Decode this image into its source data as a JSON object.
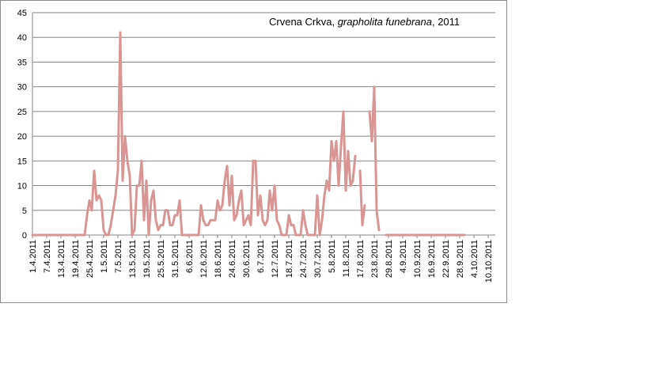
{
  "chart_data": {
    "type": "line",
    "title_parts": [
      {
        "text": "Crvena Crkva, ",
        "italic": false
      },
      {
        "text": "grapholita funebrana",
        "italic": true
      },
      {
        "text": ", 2011",
        "italic": false
      }
    ],
    "title": "Crvena Crkva, grapholita funebrana, 2011",
    "xlabel": "",
    "ylabel": "",
    "ylim": [
      0,
      45
    ],
    "yticks": [
      0,
      5,
      10,
      15,
      20,
      25,
      30,
      35,
      40,
      45
    ],
    "grid": true,
    "legend": "none",
    "line_color": "#d99594",
    "x_start": "1.4.2011",
    "x_end": "13.10.2011",
    "xtick_labels": [
      "1.4.2011",
      "7.4.2011",
      "13.4.2011",
      "19.4.2011",
      "25.4.2011",
      "1.5.2011",
      "7.5.2011",
      "13.5.2011",
      "19.5.2011",
      "25.5.2011",
      "31.5.2011",
      "6.6.2011",
      "12.6.2011",
      "18.6.2011",
      "24.6.2011",
      "30.6.2011",
      "6.7.2011",
      "12.7.2011",
      "18.7.2011",
      "24.7.2011",
      "30.7.2011",
      "5.8.2011",
      "11.8.2011",
      "17.8.2011",
      "23.8.2011",
      "29.8.2011",
      "4.9.2011",
      "10.9.2011",
      "16.9.2011",
      "22.9.2011",
      "28.9.2011",
      "4.10.2011",
      "10.10.2011"
    ],
    "series": [
      {
        "points": [
          [
            "1.4.2011",
            0
          ],
          [
            "18.4.2011",
            0
          ],
          [
            "23.4.2011",
            0
          ],
          [
            "24.4.2011",
            4
          ],
          [
            "25.4.2011",
            7
          ],
          [
            "26.4.2011",
            5
          ],
          [
            "27.4.2011",
            13
          ],
          [
            "28.4.2011",
            7
          ],
          [
            "29.4.2011",
            8
          ],
          [
            "30.4.2011",
            7
          ],
          [
            "1.5.2011",
            1
          ],
          [
            "2.5.2011",
            0
          ],
          [
            "3.5.2011",
            0
          ],
          [
            "4.5.2011",
            2
          ],
          [
            "5.5.2011",
            5
          ],
          [
            "6.5.2011",
            8
          ],
          [
            "7.5.2011",
            13
          ],
          [
            "8.5.2011",
            41
          ],
          [
            "9.5.2011",
            11
          ],
          [
            "10.5.2011",
            20
          ],
          [
            "11.5.2011",
            15
          ],
          [
            "12.5.2011",
            12
          ],
          [
            "13.5.2011",
            0
          ],
          [
            "14.5.2011",
            1
          ],
          [
            "15.5.2011",
            10
          ],
          [
            "16.5.2011",
            10
          ],
          [
            "17.5.2011",
            15
          ],
          [
            "18.5.2011",
            3
          ],
          [
            "19.5.2011",
            11
          ],
          [
            "20.5.2011",
            0
          ],
          [
            "21.5.2011",
            7
          ],
          [
            "22.5.2011",
            9
          ],
          [
            "23.5.2011",
            3
          ],
          [
            "24.5.2011",
            1
          ],
          [
            "25.5.2011",
            2
          ],
          [
            "26.5.2011",
            2
          ],
          [
            "27.5.2011",
            5
          ],
          [
            "28.5.2011",
            5
          ],
          [
            "29.5.2011",
            2
          ],
          [
            "30.5.2011",
            2
          ],
          [
            "31.5.2011",
            4
          ],
          [
            "1.6.2011",
            4
          ],
          [
            "2.6.2011",
            7
          ],
          [
            "3.6.2011",
            0
          ],
          [
            "4.6.2011",
            0
          ],
          [
            "10.6.2011",
            0
          ],
          [
            "11.6.2011",
            6
          ],
          [
            "12.6.2011",
            3
          ],
          [
            "13.6.2011",
            2
          ],
          [
            "14.6.2011",
            2
          ],
          [
            "15.6.2011",
            3
          ],
          [
            "16.6.2011",
            3
          ],
          [
            "17.6.2011",
            3
          ],
          [
            "18.6.2011",
            7
          ],
          [
            "19.6.2011",
            5
          ],
          [
            "20.6.2011",
            6
          ],
          [
            "21.6.2011",
            11
          ],
          [
            "22.6.2011",
            14
          ],
          [
            "23.6.2011",
            6
          ],
          [
            "24.6.2011",
            12
          ],
          [
            "25.6.2011",
            3
          ],
          [
            "26.6.2011",
            4
          ],
          [
            "27.6.2011",
            7
          ],
          [
            "28.6.2011",
            9
          ],
          [
            "29.6.2011",
            2
          ],
          [
            "30.6.2011",
            3
          ],
          [
            "1.7.2011",
            4
          ],
          [
            "2.7.2011",
            2
          ],
          [
            "3.7.2011",
            15
          ],
          [
            "4.7.2011",
            15
          ],
          [
            "5.7.2011",
            4
          ],
          [
            "6.7.2011",
            8
          ],
          [
            "7.7.2011",
            3
          ],
          [
            "8.7.2011",
            2
          ],
          [
            "9.7.2011",
            3
          ],
          [
            "10.7.2011",
            9
          ],
          [
            "11.7.2011",
            5
          ],
          [
            "12.7.2011",
            10
          ],
          [
            "13.7.2011",
            3
          ],
          [
            "14.7.2011",
            2
          ],
          [
            "15.7.2011",
            0
          ],
          [
            "16.7.2011",
            0
          ],
          [
            "17.7.2011",
            0
          ],
          [
            "18.7.2011",
            4
          ],
          [
            "19.7.2011",
            2
          ],
          [
            "20.7.2011",
            2
          ],
          [
            "21.7.2011",
            0
          ],
          [
            "22.7.2011",
            0
          ],
          [
            "23.7.2011",
            0
          ],
          [
            "24.7.2011",
            5
          ],
          [
            "25.7.2011",
            2
          ],
          [
            "26.7.2011",
            0
          ],
          [
            "27.7.2011",
            0
          ],
          [
            "29.7.2011",
            0
          ],
          [
            "30.7.2011",
            8
          ],
          [
            "31.7.2011",
            0
          ],
          [
            "1.8.2011",
            3
          ],
          [
            "2.8.2011",
            8
          ],
          [
            "3.8.2011",
            11
          ],
          [
            "4.8.2011",
            9
          ],
          [
            "5.8.2011",
            19
          ],
          [
            "6.8.2011",
            15
          ],
          [
            "7.8.2011",
            19
          ],
          [
            "8.8.2011",
            10
          ],
          [
            "9.8.2011",
            18
          ],
          [
            "10.8.2011",
            25
          ],
          [
            "11.8.2011",
            9
          ],
          [
            "12.8.2011",
            17
          ],
          [
            "13.8.2011",
            10
          ],
          [
            "14.8.2011",
            11
          ],
          [
            "15.8.2011",
            16
          ],
          null,
          [
            "17.8.2011",
            13
          ],
          [
            "18.8.2011",
            2
          ],
          [
            "19.8.2011",
            6
          ],
          null,
          [
            "21.8.2011",
            25
          ],
          [
            "22.8.2011",
            19
          ],
          [
            "23.8.2011",
            30
          ],
          [
            "24.8.2011",
            5
          ],
          [
            "25.8.2011",
            1
          ]
        ]
      },
      {
        "points": [
          [
            "28.8.2011",
            0
          ],
          [
            "30.9.2011",
            0
          ]
        ]
      }
    ]
  }
}
